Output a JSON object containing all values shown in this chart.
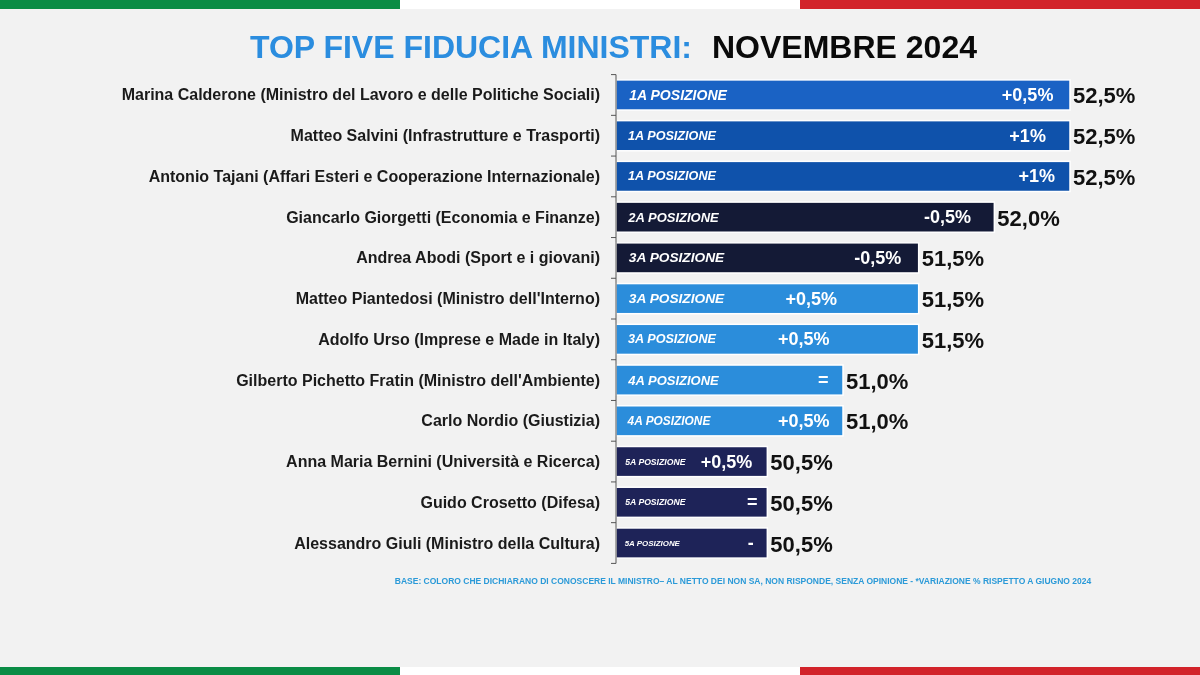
{
  "chart_data": {
    "type": "bar",
    "orientation": "horizontal",
    "title": "TOP FIVE FIDUCIA MINISTRI:",
    "subtitle": "NOVEMBRE 2024",
    "categories": [
      "Marina Calderone (Ministro del Lavoro e delle Politiche Sociali)",
      "Matteo Salvini (Infrastrutture e Trasporti)",
      "Antonio Tajani (Affari Esteri e Cooperazione Internazionale)",
      "Giancarlo Giorgetti (Economia e Finanze)",
      "Andrea Abodi (Sport e i giovani)",
      "Matteo Piantedosi (Ministro dell'Interno)",
      "Adolfo Urso (Imprese e Made in Italy)",
      "Gilberto Pichetto Fratin (Ministro dell'Ambiente)",
      "Carlo Nordio (Giustizia)",
      "Anna Maria Bernini (Università e Ricerca)",
      "Guido Crosetto (Difesa)",
      "Alessandro Giuli (Ministro della Cultura)"
    ],
    "values": [
      52.5,
      52.5,
      52.5,
      52.0,
      51.5,
      51.5,
      51.5,
      51.0,
      51.0,
      50.5,
      50.5,
      50.5
    ],
    "colors": [
      "#1a62c4",
      "#0f52ab",
      "#0f52ab",
      "#141a36",
      "#141a36",
      "#2b8ddb",
      "#2b8ddb",
      "#2b8ddb",
      "#2b8ddb",
      "#1e2358",
      "#1e2358",
      "#1e2358"
    ],
    "value_labels": [
      "52,5%",
      "52,5%",
      "52,5%",
      "52,0%",
      "51,5%",
      "51,5%",
      "51,5%",
      "51,0%",
      "51,0%",
      "50,5%",
      "50,5%",
      "50,5%"
    ],
    "xlim": [
      49.5,
      52.5
    ],
    "tick_labels": "y",
    "annotations": [
      {
        "text": "1A POSIZIONE",
        "x": 49.91,
        "y": "Marina Calderone (Ministro del Lavoro e delle Politiche Sociali)"
      },
      {
        "text": "+0,5%",
        "x": 52.22,
        "y": "Marina Calderone (Ministro del Lavoro e delle Politiche Sociali)"
      },
      {
        "text": "1A POSIZIONE",
        "x": 49.87,
        "y": "Matteo Salvini (Infrastrutture e Trasporti)"
      },
      {
        "text": "+1%",
        "x": 52.22,
        "y": "Matteo Salvini (Infrastrutture e Trasporti)"
      },
      {
        "text": "1A POSIZIONE",
        "x": 49.87,
        "y": "Antonio Tajani (Affari Esteri e Cooperazione Internazionale)"
      },
      {
        "text": "+1%",
        "x": 52.28,
        "y": "Antonio Tajani (Affari Esteri e Cooperazione Internazionale)"
      },
      {
        "text": "2A POSIZIONE",
        "x": 49.88,
        "y": "Giancarlo Giorgetti (Economia e Finanze)"
      },
      {
        "text": "-0,5%",
        "x": 51.69,
        "y": "Giancarlo Giorgetti (Economia e Finanze)"
      },
      {
        "text": "3A POSIZIONE",
        "x": 49.9,
        "y": "Andrea Abodi (Sport e i giovani)"
      },
      {
        "text": "-0,5%",
        "x": 51.23,
        "y": "Andrea Abodi (Sport e i giovani)"
      },
      {
        "text": "3A POSIZIONE",
        "x": 49.9,
        "y": "Matteo Piantedosi (Ministro dell'Interno)"
      },
      {
        "text": "+0,5%",
        "x": 50.79,
        "y": "Matteo Piantedosi (Ministro dell'Interno)"
      },
      {
        "text": "3A POSIZIONE",
        "x": 49.87,
        "y": "Adolfo Urso (Imprese e Made in Italy)"
      },
      {
        "text": "+0,5%",
        "x": 50.74,
        "y": "Adolfo Urso (Imprese e Made in Italy)"
      },
      {
        "text": "4A POSIZIONE",
        "x": 49.88,
        "y": "Gilberto Pichetto Fratin (Ministro dell'Ambiente)"
      },
      {
        "text": "=",
        "x": 50.87,
        "y": "Gilberto Pichetto Fratin (Ministro dell'Ambiente)"
      },
      {
        "text": "4A POSIZIONE",
        "x": 49.85,
        "y": "Carlo Nordio (Giustizia)"
      },
      {
        "text": "+0,5%",
        "x": 50.74,
        "y": "Carlo Nordio (Giustizia)"
      },
      {
        "text": "5A POSIZIONE",
        "x": 49.76,
        "y": "Anna Maria Bernini (Università e Ricerca)"
      },
      {
        "text": "+0,5%",
        "x": 50.23,
        "y": "Anna Maria Bernini (Università e Ricerca)"
      },
      {
        "text": "5A POSIZIONE",
        "x": 49.76,
        "y": "Guido Crosetto (Difesa)"
      },
      {
        "text": "=",
        "x": 50.4,
        "y": "Guido Crosetto (Difesa)"
      },
      {
        "text": "5A POSIZIONE",
        "x": 49.74,
        "y": "Alessandro Giuli (Ministro della Cultura)"
      },
      {
        "text": "-",
        "x": 50.39,
        "y": "Alessandro Giuli (Ministro della Cultura)"
      },
      "BASE: COLORO CHE DICHIARANO DI CONOSCERE IL MINISTRO– AL NETTO DEI NON SA, NON RISPONDE, SENZA OPINIONE - *VARIAZIONE % RISPETTO A GIUGNO 2024"
    ]
  }
}
